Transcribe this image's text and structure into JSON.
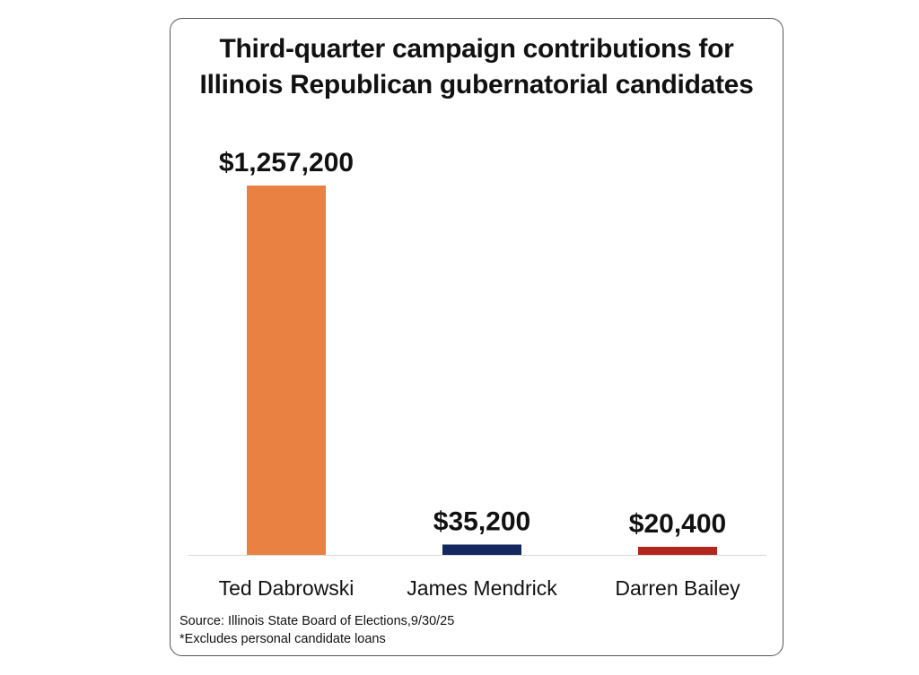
{
  "chart_data": {
    "type": "bar",
    "title_lines": [
      "Third-quarter campaign contributions for",
      "Illinois Republican gubernatorial candidates"
    ],
    "categories": [
      "Ted Dabrowski",
      "James Mendrick",
      "Darren Bailey"
    ],
    "values": [
      1257200,
      35200,
      20400
    ],
    "value_labels": [
      "$1,257,200",
      "$35,200",
      "$20,400"
    ],
    "colors": [
      "#E98142",
      "#14285F",
      "#B3261E"
    ],
    "xlabel": "",
    "ylabel": "",
    "ylim": [
      0,
      1257200
    ],
    "grid": false,
    "legend": "none"
  },
  "footnotes": {
    "source": "Source: Illinois State Board of Elections,9/30/25",
    "note": "*Excludes personal candidate loans"
  }
}
